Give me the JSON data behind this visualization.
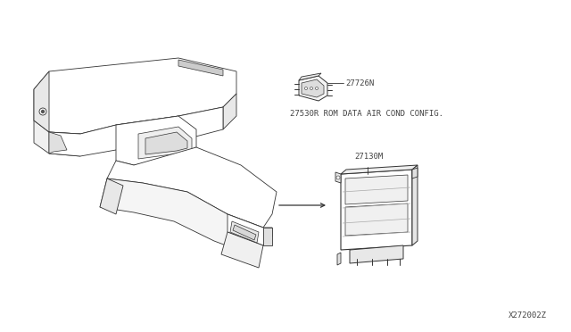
{
  "background_color": "#ffffff",
  "fig_width": 6.4,
  "fig_height": 3.72,
  "dpi": 100,
  "diagram_number": "X272002Z",
  "part1_label": "27726N",
  "part1_desc": "27530R ROM DATA AIR COND CONFIG.",
  "part2_label": "27130M",
  "text_color": "#444444",
  "line_color": "#333333",
  "lw": 0.6
}
